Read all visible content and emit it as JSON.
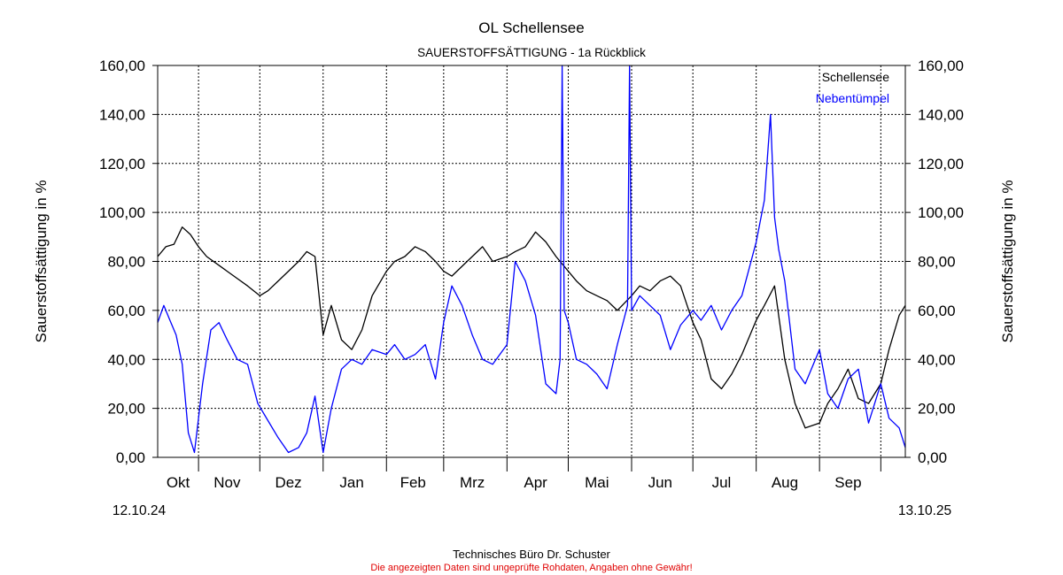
{
  "title": "OL Schellensee",
  "subtitle": "SAUERSTOFFSÄTTIGUNG - 1a Rückblick",
  "footer": {
    "line1": "Technisches Büro Dr. Schuster",
    "line2": "Die angezeigten Daten sind ungeprüfte Rohdaten, Angaben ohne Gewähr!"
  },
  "chart_data": {
    "type": "line",
    "title": "OL Schellensee",
    "subtitle": "SAUERSTOFFSÄTTIGUNG - 1a Rückblick",
    "ylabel": "Sauerstoffsättigung in %",
    "ylabel_right": "Sauerstoffsättigung in %",
    "ylim": [
      0,
      160
    ],
    "yticks": [
      "0,00",
      "20,00",
      "40,00",
      "60,00",
      "80,00",
      "100,00",
      "120,00",
      "140,00",
      "160,00"
    ],
    "ytick_values": [
      0,
      20,
      40,
      60,
      80,
      100,
      120,
      140,
      160
    ],
    "x_start_label": "12.10.24",
    "x_end_label": "13.10.25",
    "x_domain": [
      "2024-10-12",
      "2025-10-13"
    ],
    "month_labels": [
      "Okt",
      "Nov",
      "Dez",
      "Jan",
      "Feb",
      "Mrz",
      "Apr",
      "Mai",
      "Jun",
      "Jul",
      "Aug",
      "Sep"
    ],
    "month_label_dates": [
      "2024-10-22",
      "2024-11-15",
      "2024-12-15",
      "2025-01-15",
      "2025-02-14",
      "2025-03-15",
      "2025-04-15",
      "2025-05-15",
      "2025-06-15",
      "2025-07-15",
      "2025-08-15",
      "2025-09-15"
    ],
    "month_boundaries": [
      "2024-11-01",
      "2024-12-01",
      "2025-01-01",
      "2025-02-01",
      "2025-03-01",
      "2025-04-01",
      "2025-05-01",
      "2025-06-01",
      "2025-07-01",
      "2025-08-01",
      "2025-09-01",
      "2025-10-01"
    ],
    "grid": true,
    "legend_position": "top-right",
    "series": [
      {
        "name": "Schellensee",
        "color": "#000000",
        "x": [
          "2024-10-12",
          "2024-10-16",
          "2024-10-20",
          "2024-10-24",
          "2024-10-28",
          "2024-11-01",
          "2024-11-05",
          "2024-11-10",
          "2024-11-15",
          "2024-11-20",
          "2024-11-25",
          "2024-12-01",
          "2024-12-05",
          "2024-12-10",
          "2024-12-15",
          "2024-12-20",
          "2024-12-24",
          "2024-12-28",
          "2025-01-01",
          "2025-01-05",
          "2025-01-10",
          "2025-01-15",
          "2025-01-20",
          "2025-01-25",
          "2025-02-01",
          "2025-02-05",
          "2025-02-10",
          "2025-02-15",
          "2025-02-20",
          "2025-02-25",
          "2025-03-01",
          "2025-03-05",
          "2025-03-10",
          "2025-03-15",
          "2025-03-20",
          "2025-03-25",
          "2025-04-01",
          "2025-04-05",
          "2025-04-10",
          "2025-04-15",
          "2025-04-20",
          "2025-04-25",
          "2025-05-01",
          "2025-05-05",
          "2025-05-10",
          "2025-05-15",
          "2025-05-20",
          "2025-05-25",
          "2025-06-01",
          "2025-06-05",
          "2025-06-10",
          "2025-06-15",
          "2025-06-20",
          "2025-06-25",
          "2025-07-01",
          "2025-07-05",
          "2025-07-10",
          "2025-07-15",
          "2025-07-20",
          "2025-07-25",
          "2025-08-01",
          "2025-08-05",
          "2025-08-10",
          "2025-08-15",
          "2025-08-20",
          "2025-08-25",
          "2025-09-01",
          "2025-09-05",
          "2025-09-10",
          "2025-09-15",
          "2025-09-20",
          "2025-09-25",
          "2025-10-01",
          "2025-10-05",
          "2025-10-10",
          "2025-10-13"
        ],
        "values": [
          82,
          86,
          87,
          94,
          91,
          86,
          82,
          79,
          76,
          73,
          70,
          66,
          68,
          72,
          76,
          80,
          84,
          82,
          50,
          62,
          48,
          44,
          52,
          66,
          76,
          80,
          82,
          86,
          84,
          80,
          76,
          74,
          78,
          82,
          86,
          80,
          82,
          84,
          86,
          92,
          88,
          82,
          76,
          72,
          68,
          66,
          64,
          60,
          66,
          70,
          68,
          72,
          74,
          70,
          55,
          48,
          32,
          28,
          34,
          42,
          56,
          62,
          70,
          40,
          22,
          12,
          14,
          22,
          28,
          36,
          24,
          22,
          30,
          44,
          58,
          62
        ]
      },
      {
        "name": "Nebentümpel",
        "color": "#0000ff",
        "x": [
          "2024-10-12",
          "2024-10-15",
          "2024-10-18",
          "2024-10-21",
          "2024-10-24",
          "2024-10-27",
          "2024-10-30",
          "2024-11-03",
          "2024-11-07",
          "2024-11-11",
          "2024-11-15",
          "2024-11-20",
          "2024-11-25",
          "2024-11-30",
          "2024-12-05",
          "2024-12-10",
          "2024-12-15",
          "2024-12-20",
          "2024-12-24",
          "2024-12-28",
          "2025-01-01",
          "2025-01-05",
          "2025-01-10",
          "2025-01-15",
          "2025-01-20",
          "2025-01-25",
          "2025-02-01",
          "2025-02-05",
          "2025-02-10",
          "2025-02-15",
          "2025-02-20",
          "2025-02-25",
          "2025-03-01",
          "2025-03-05",
          "2025-03-10",
          "2025-03-15",
          "2025-03-20",
          "2025-03-25",
          "2025-04-01",
          "2025-04-05",
          "2025-04-10",
          "2025-04-15",
          "2025-04-20",
          "2025-04-25",
          "2025-04-27",
          "2025-04-28",
          "2025-04-29",
          "2025-05-01",
          "2025-05-05",
          "2025-05-10",
          "2025-05-15",
          "2025-05-20",
          "2025-05-25",
          "2025-05-30",
          "2025-05-31",
          "2025-06-01",
          "2025-06-05",
          "2025-06-10",
          "2025-06-15",
          "2025-06-20",
          "2025-06-25",
          "2025-07-01",
          "2025-07-05",
          "2025-07-10",
          "2025-07-15",
          "2025-07-20",
          "2025-07-25",
          "2025-08-01",
          "2025-08-05",
          "2025-08-08",
          "2025-08-10",
          "2025-08-12",
          "2025-08-15",
          "2025-08-20",
          "2025-08-25",
          "2025-09-01",
          "2025-09-05",
          "2025-09-10",
          "2025-09-15",
          "2025-09-20",
          "2025-09-25",
          "2025-10-01",
          "2025-10-05",
          "2025-10-10",
          "2025-10-13"
        ],
        "values": [
          55,
          62,
          56,
          50,
          38,
          10,
          2,
          30,
          52,
          55,
          48,
          40,
          38,
          22,
          15,
          8,
          2,
          4,
          10,
          25,
          2,
          20,
          36,
          40,
          38,
          44,
          42,
          46,
          40,
          42,
          46,
          32,
          55,
          70,
          62,
          50,
          40,
          38,
          46,
          80,
          72,
          58,
          30,
          26,
          40,
          160,
          60,
          55,
          40,
          38,
          34,
          28,
          46,
          62,
          160,
          60,
          66,
          62,
          58,
          44,
          54,
          60,
          56,
          62,
          52,
          60,
          66,
          88,
          105,
          140,
          98,
          85,
          72,
          36,
          30,
          44,
          26,
          20,
          32,
          36,
          14,
          30,
          16,
          12,
          4
        ]
      }
    ]
  }
}
